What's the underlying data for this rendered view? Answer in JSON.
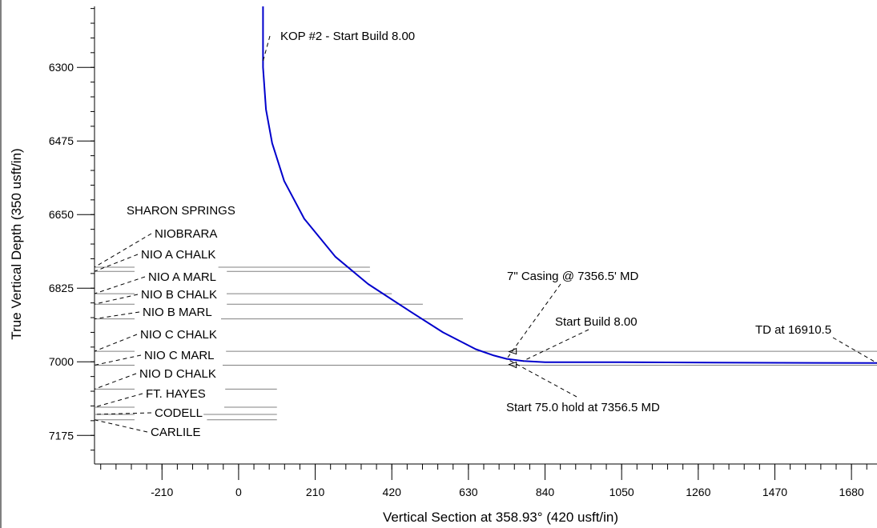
{
  "chart_data": {
    "type": "line",
    "xlabel": "Vertical Section at 358.93° (420 usft/in)",
    "ylabel": "True Vertical Depth (350 usft/in)",
    "xlim": [
      -395,
      1750
    ],
    "ylim": [
      7243,
      6155
    ],
    "x_ticks": [
      -210,
      0,
      210,
      420,
      630,
      840,
      1050,
      1260,
      1470,
      1680
    ],
    "y_ticks": [
      6300,
      6475,
      6650,
      6825,
      7000,
      7175
    ],
    "grid": false,
    "series": [
      {
        "color": "#0000cc",
        "points": [
          [
            67,
            6155
          ],
          [
            67,
            6300
          ],
          [
            75,
            6400
          ],
          [
            92,
            6480
          ],
          [
            125,
            6570
          ],
          [
            180,
            6660
          ],
          [
            265,
            6750
          ],
          [
            355,
            6815
          ],
          [
            470,
            6880
          ],
          [
            560,
            6930
          ],
          [
            650,
            6970
          ],
          [
            700,
            6985
          ],
          [
            735,
            6993
          ],
          [
            780,
            6998
          ],
          [
            840,
            7001
          ],
          [
            1050,
            7001
          ],
          [
            1300,
            7002
          ],
          [
            1750,
            7003
          ]
        ]
      }
    ],
    "formations": [
      {
        "name": "SHARON SPRINGS",
        "depth": null,
        "line_end": null
      },
      {
        "name": "NIOBRARA",
        "depth": 6775,
        "line_end": 360
      },
      {
        "name": "NIO A CHALK",
        "depth": 6785,
        "line_end": 360
      },
      {
        "name": "NIO A MARL",
        "depth": 6838,
        "line_end": 420
      },
      {
        "name": "NIO B CHALK",
        "depth": 6863,
        "line_end": 505
      },
      {
        "name": "NIO B MARL",
        "depth": 6898,
        "line_end": 615
      },
      {
        "name": "NIO C CHALK",
        "depth": 6975,
        "line_end": 1750
      },
      {
        "name": "NIO C MARL",
        "depth": 7008,
        "line_end": 1750
      },
      {
        "name": "NIO D CHALK",
        "depth": 7065,
        "line_end": 105
      },
      {
        "name": "FT.  HAYES",
        "depth": 7108,
        "line_end": 105
      },
      {
        "name": "CODELL",
        "depth": 7125,
        "line_end": 105
      },
      {
        "name": "CARLILE",
        "depth": 7138,
        "line_end": 105
      }
    ],
    "annotations": [
      {
        "text": "KOP #2 - Start Build 8.00",
        "x": 67,
        "y": 6285
      },
      {
        "text": "7\" Casing @ 7356.5' MD",
        "x": 735,
        "y": 6993
      },
      {
        "text": "Start Build 8.00",
        "x": 780,
        "y": 6998
      },
      {
        "text": "Start 75.0 hold at 7356.5 MD",
        "x": 735,
        "y": 6993
      },
      {
        "text": "TD at 16910.5",
        "x": 1750,
        "y": 7003
      }
    ]
  }
}
